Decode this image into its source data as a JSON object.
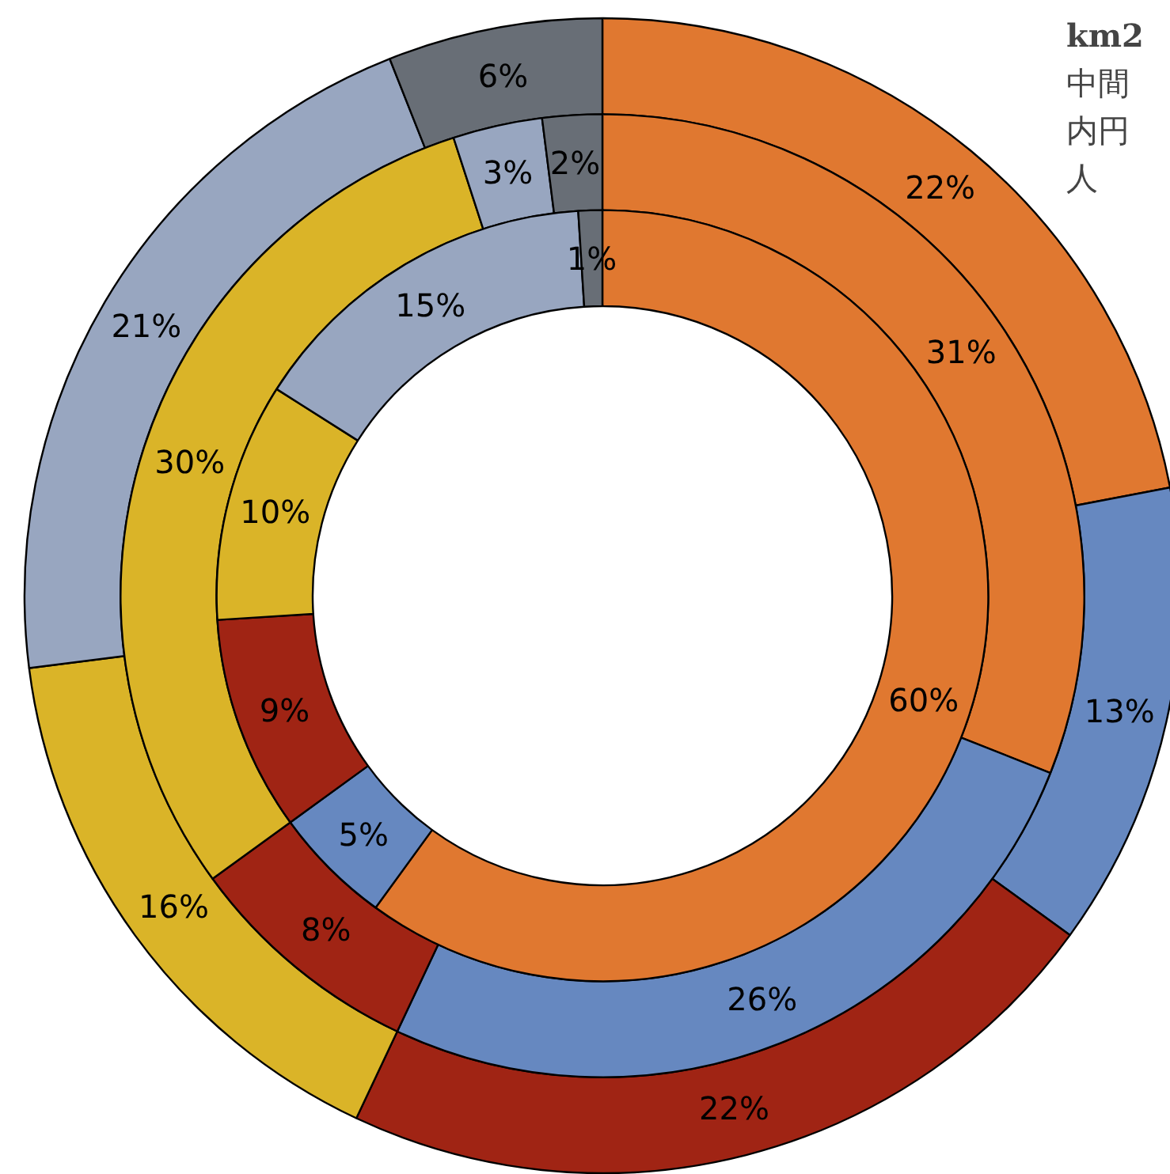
{
  "chart_data": {
    "type": "donut",
    "title": "km2",
    "annotations": [
      "中間",
      "内円",
      "人"
    ],
    "categories": [
      null,
      null,
      null,
      null,
      null,
      null
    ],
    "series": [
      {
        "values": [
          22,
          13,
          22,
          16,
          21,
          6
        ],
        "value_labels": [
          "22%",
          "13%",
          "22%",
          "16%",
          "21%",
          "6%"
        ],
        "colors": [
          "#e07830",
          "#6688c0",
          "#a02414",
          "#dab428",
          "#98a6c0",
          "#686e76"
        ]
      },
      {
        "values": [
          31,
          26,
          8,
          30,
          3,
          2
        ],
        "value_labels": [
          "31%",
          "26%",
          "8%",
          "30%",
          "3%",
          "2%"
        ],
        "colors": [
          "#e07830",
          "#6688c0",
          "#a02414",
          "#dab428",
          "#98a6c0",
          "#686e76"
        ]
      },
      {
        "values": [
          60,
          5,
          9,
          10,
          15,
          1
        ],
        "value_labels": [
          "60%",
          "5%",
          "9%",
          "10%",
          "15%",
          "1%"
        ],
        "colors": [
          "#e07830",
          "#6688c0",
          "#a02414",
          "#dab428",
          "#98a6c0",
          "#686e76"
        ]
      }
    ]
  }
}
